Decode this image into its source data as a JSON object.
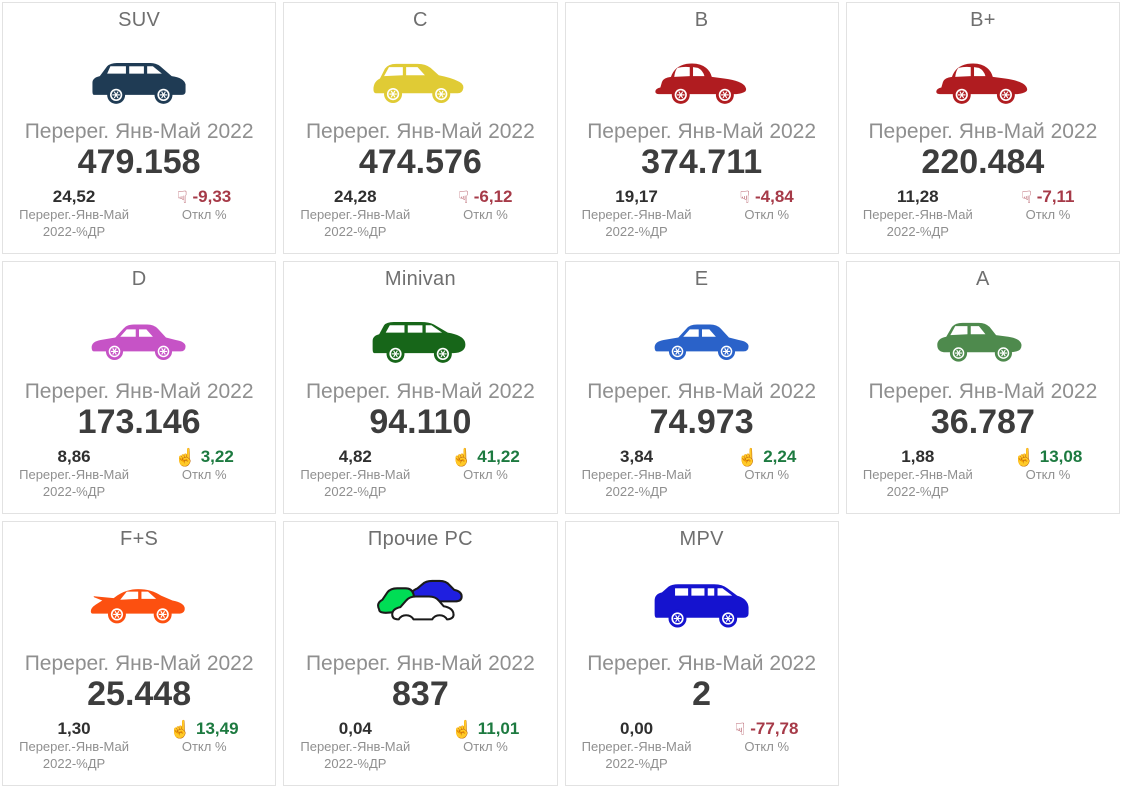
{
  "labels": {
    "metric": "Перерег. Янв-Май 2022",
    "share": "Перерег.-Янв-Май 2022-%ДР",
    "deviation": "Откл %"
  },
  "icons": {
    "up": "☝",
    "down": "☟"
  },
  "colors": {
    "positive": "#1d7a40",
    "negative": "#a63a48",
    "card_border": "#e2e2e2",
    "title_text": "#6f6f6f",
    "label_text": "#8f8f8f",
    "value_text": "#3d3d3d",
    "multi_green": "#00dd55",
    "multi_blue": "#1f1fe0",
    "multi_white": "#ffffff",
    "multi_outline": "#1a1a1a"
  },
  "cards": [
    {
      "title": "SUV",
      "icon": "suv",
      "icon_color": "#1f3b54",
      "value": "479.158",
      "share": "24,52",
      "delta": "-9,33",
      "direction": "down"
    },
    {
      "title": "C",
      "icon": "hatchback",
      "icon_color": "#e0cb35",
      "value": "474.576",
      "share": "24,28",
      "delta": "-6,12",
      "direction": "down"
    },
    {
      "title": "B",
      "icon": "beetle",
      "icon_color": "#b01c20",
      "value": "374.711",
      "share": "19,17",
      "delta": "-4,84",
      "direction": "down"
    },
    {
      "title": "B+",
      "icon": "beetle",
      "icon_color": "#b01c20",
      "value": "220.484",
      "share": "11,28",
      "delta": "-7,11",
      "direction": "down"
    },
    {
      "title": "D",
      "icon": "sedan",
      "icon_color": "#c653c6",
      "value": "173.146",
      "share": "8,86",
      "delta": "3,22",
      "direction": "up"
    },
    {
      "title": "Minivan",
      "icon": "minivan",
      "icon_color": "#176619",
      "value": "94.110",
      "share": "4,82",
      "delta": "41,22",
      "direction": "up"
    },
    {
      "title": "E",
      "icon": "sedan",
      "icon_color": "#2a62c9",
      "value": "74.973",
      "share": "3,84",
      "delta": "2,24",
      "direction": "up"
    },
    {
      "title": "A",
      "icon": "mini",
      "icon_color": "#4e8a4d",
      "value": "36.787",
      "share": "1,88",
      "delta": "13,08",
      "direction": "up"
    },
    {
      "title": "F+S",
      "icon": "sports",
      "icon_color": "#fc5010",
      "value": "25.448",
      "share": "1,30",
      "delta": "13,49",
      "direction": "up"
    },
    {
      "title": "Прочие PC",
      "icon": "multi",
      "icon_color": "#00dd55",
      "value": "837",
      "share": "0,04",
      "delta": "11,01",
      "direction": "up"
    },
    {
      "title": "MPV",
      "icon": "van",
      "icon_color": "#1513cf",
      "value": "2",
      "share": "0,00",
      "delta": "-77,78",
      "direction": "down"
    }
  ],
  "chart_data": {
    "type": "table",
    "title": "Перерег. Янв-Май 2022",
    "categories": [
      "SUV",
      "C",
      "B",
      "B+",
      "D",
      "Minivan",
      "E",
      "A",
      "F+S",
      "Прочие PC",
      "MPV"
    ],
    "series": [
      {
        "name": "Перерег. Янв-Май 2022",
        "values": [
          479158,
          474576,
          374711,
          220484,
          173146,
          94110,
          74973,
          36787,
          25448,
          837,
          2
        ]
      },
      {
        "name": "Перерег.-Янв-Май 2022-%ДР",
        "values": [
          24.52,
          24.28,
          19.17,
          11.28,
          8.86,
          4.82,
          3.84,
          1.88,
          1.3,
          0.04,
          0.0
        ]
      },
      {
        "name": "Откл %",
        "values": [
          -9.33,
          -6.12,
          -4.84,
          -7.11,
          3.22,
          41.22,
          2.24,
          13.08,
          13.49,
          11.01,
          -77.78
        ]
      }
    ]
  }
}
